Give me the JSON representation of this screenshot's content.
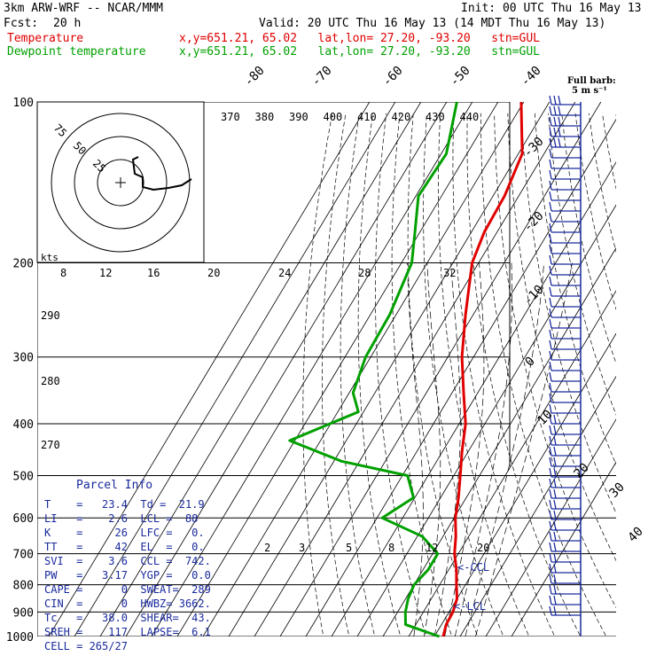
{
  "header": {
    "model": "3km ARW-WRF -- NCAR/MMM",
    "init": "Init: 00 UTC Thu 16 May 13",
    "fcst_label": "Fcst:",
    "fcst_value": "20 h",
    "valid": "Valid: 20 UTC Thu 16 May 13 (14 MDT Thu 16 May 13)"
  },
  "legend": {
    "temperature": {
      "label": "Temperature",
      "info": "x,y=651.21, 65.02   lat,lon= 27.20, -93.20   stn=GUL",
      "color": "#e00000"
    },
    "dewpoint": {
      "label": "Dewpoint temperature",
      "info": "x,y=651.21, 65.02   lat,lon= 27.20, -93.20   stn=GUL",
      "color": "#00a000"
    }
  },
  "barb_legend": {
    "title": "Full barb:",
    "value": "5 m s⁻¹"
  },
  "chart_data": {
    "type": "line",
    "diagram": "skew-t log-p",
    "pressure_levels": [
      100,
      200,
      300,
      400,
      500,
      600,
      700,
      800,
      900,
      1000
    ],
    "pressure_labels": [
      "100",
      "200",
      "300",
      "400",
      "500",
      "600",
      "700",
      "800",
      "900",
      "1000"
    ],
    "isotherm_labels": [
      "-80",
      "-70",
      "-60",
      "-50",
      "-40",
      "-30",
      "-20",
      "-10",
      "0",
      "10",
      "20",
      "30",
      "40"
    ],
    "theta_labels": [
      "370",
      "380",
      "390",
      "400",
      "410",
      "420",
      "430",
      "440"
    ],
    "mixing_ratio_labels": [
      "2",
      "3",
      "5",
      "8",
      "12",
      "20"
    ],
    "hodograph": {
      "units": "kts",
      "ring_labels": [
        "75",
        "50",
        "25"
      ],
      "speed_axis": [
        "8",
        "12",
        "16",
        "20",
        "24",
        "28",
        "32"
      ],
      "theta_left": [
        "290",
        "280",
        "270"
      ]
    },
    "series": [
      {
        "name": "Temperature",
        "color": "#e00000",
        "points": [
          [
            100,
            -71.0
          ],
          [
            125,
            -58.5
          ],
          [
            150,
            -55.5
          ],
          [
            175,
            -55.0
          ],
          [
            200,
            -52.5
          ],
          [
            250,
            -43.0
          ],
          [
            300,
            -34.5
          ],
          [
            350,
            -25.5
          ],
          [
            400,
            -17.5
          ],
          [
            450,
            -12.5
          ],
          [
            500,
            -7.5
          ],
          [
            550,
            -3.0
          ],
          [
            600,
            0.5
          ],
          [
            650,
            5.0
          ],
          [
            700,
            8.5
          ],
          [
            750,
            13.0
          ],
          [
            800,
            16.5
          ],
          [
            850,
            20.0
          ],
          [
            900,
            21.5
          ],
          [
            950,
            21.8
          ],
          [
            1000,
            23.4
          ]
        ]
      },
      {
        "name": "Dewpoint temperature",
        "color": "#00a000",
        "points": [
          [
            100,
            -96.0
          ],
          [
            125,
            -88.0
          ],
          [
            150,
            -89.0
          ],
          [
            175,
            -82.0
          ],
          [
            200,
            -76.0
          ],
          [
            250,
            -72.5
          ],
          [
            300,
            -72.0
          ],
          [
            350,
            -68.5
          ],
          [
            380,
            -62.0
          ],
          [
            430,
            -82.0
          ],
          [
            470,
            -57.0
          ],
          [
            500,
            -28.0
          ],
          [
            550,
            -20.5
          ],
          [
            600,
            -28.0
          ],
          [
            650,
            -8.0
          ],
          [
            700,
            2.0
          ],
          [
            750,
            2.0
          ],
          [
            800,
            0.0
          ],
          [
            850,
            1.0
          ],
          [
            900,
            3.0
          ],
          [
            950,
            6.0
          ],
          [
            1000,
            21.9
          ]
        ]
      }
    ],
    "annotations": [
      "<-CCL",
      "<-LCL"
    ]
  },
  "parcel": {
    "title": "Parcel Info",
    "rows": [
      "T    =   23.4  Td =  21.9",
      "LI   =    2.6  LCL =  88",
      "K    =     26  LFC =   0.",
      "TT   =     42  EL  =   0.",
      "SVI  =    3.6  CCL =  742.",
      "PW   =   3.17  YGP =   0.0",
      "CAPE =      0  SWEAT=  289",
      "CIN  =      0  HWBZ= 3662.",
      "Tc   =   38.0  SHEAR=  43.",
      "SREH =    117  LAPSE=  6.1",
      "CELL = 265/27"
    ]
  }
}
